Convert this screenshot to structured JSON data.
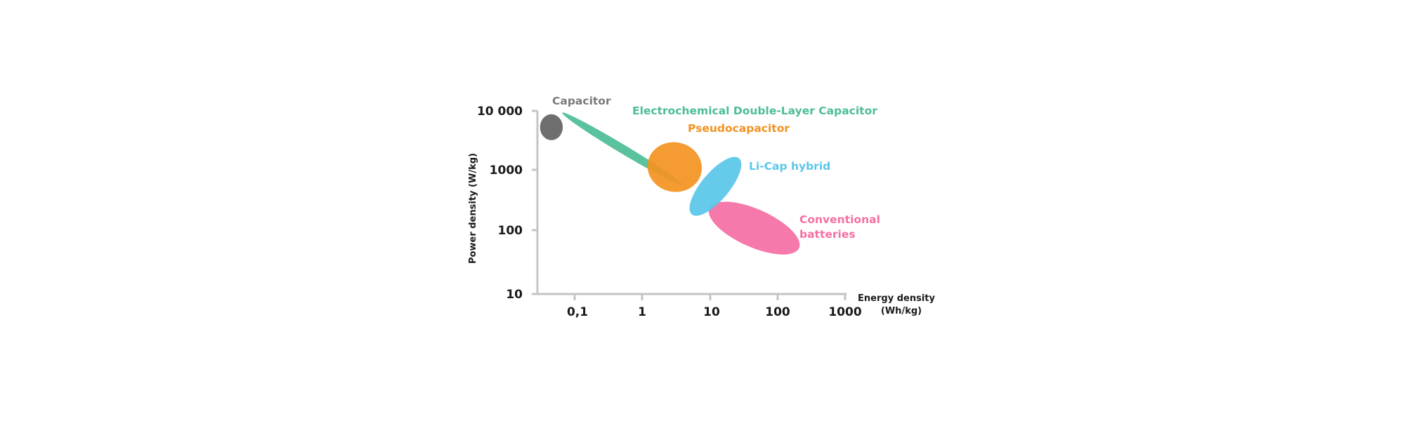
{
  "chart_data": {
    "type": "scatter",
    "title": "",
    "xlabel": [
      "Energy density",
      "(Wh/kg)"
    ],
    "ylabel": "Power density (W/kg)",
    "x_scale": "log",
    "y_scale": "log",
    "xlim": [
      0.01,
      1000
    ],
    "ylim": [
      10,
      10000
    ],
    "x_ticks": [
      0.1,
      1,
      10,
      100,
      1000
    ],
    "x_tick_labels": [
      "0,1",
      "1",
      "10",
      "100",
      "1000"
    ],
    "y_ticks": [
      10,
      100,
      1000,
      10000
    ],
    "y_tick_labels": [
      "10",
      "100",
      "1000",
      "10 000"
    ],
    "grid": false,
    "legend": "none",
    "series": [
      {
        "name": "Capacitor",
        "color": "#6e6e6e",
        "label_lines": [
          "Capacitor"
        ],
        "region": {
          "center": [
            0.045,
            5400
          ],
          "x_range": [
            0.03,
            0.065
          ],
          "y_range": [
            3200,
            8500
          ]
        }
      },
      {
        "name": "Electrochemical Double-Layer Capacitor",
        "color": "#4dbd96",
        "label_lines": [
          "Electrochemical Double-Layer Capacitor"
        ],
        "region": {
          "center": [
            0.5,
            2400
          ],
          "x_range": [
            0.05,
            2.7
          ],
          "y_range": [
            700,
            6500
          ]
        }
      },
      {
        "name": "Pseudocapacitor",
        "color": "#f39322",
        "label_lines": [
          "Pseudocapacitor"
        ],
        "region": {
          "center": [
            3,
            1200
          ],
          "x_range": [
            1.1,
            7
          ],
          "y_range": [
            460,
            3000
          ]
        }
      },
      {
        "name": "Li-Cap hybrid",
        "color": "#5ac6ea",
        "label_lines": [
          "Li-Cap hybrid"
        ],
        "region": {
          "center": [
            12,
            580
          ],
          "x_range": [
            5.5,
            32
          ],
          "y_range": [
            190,
            1750
          ]
        }
      },
      {
        "name": "Conventional batteries",
        "color": "#f46fa4",
        "label_lines": [
          "Conventional",
          "batteries"
        ],
        "region": {
          "center": [
            45,
            120
          ],
          "x_range": [
            9,
            200
          ],
          "y_range": [
            60,
            440
          ]
        }
      }
    ]
  }
}
